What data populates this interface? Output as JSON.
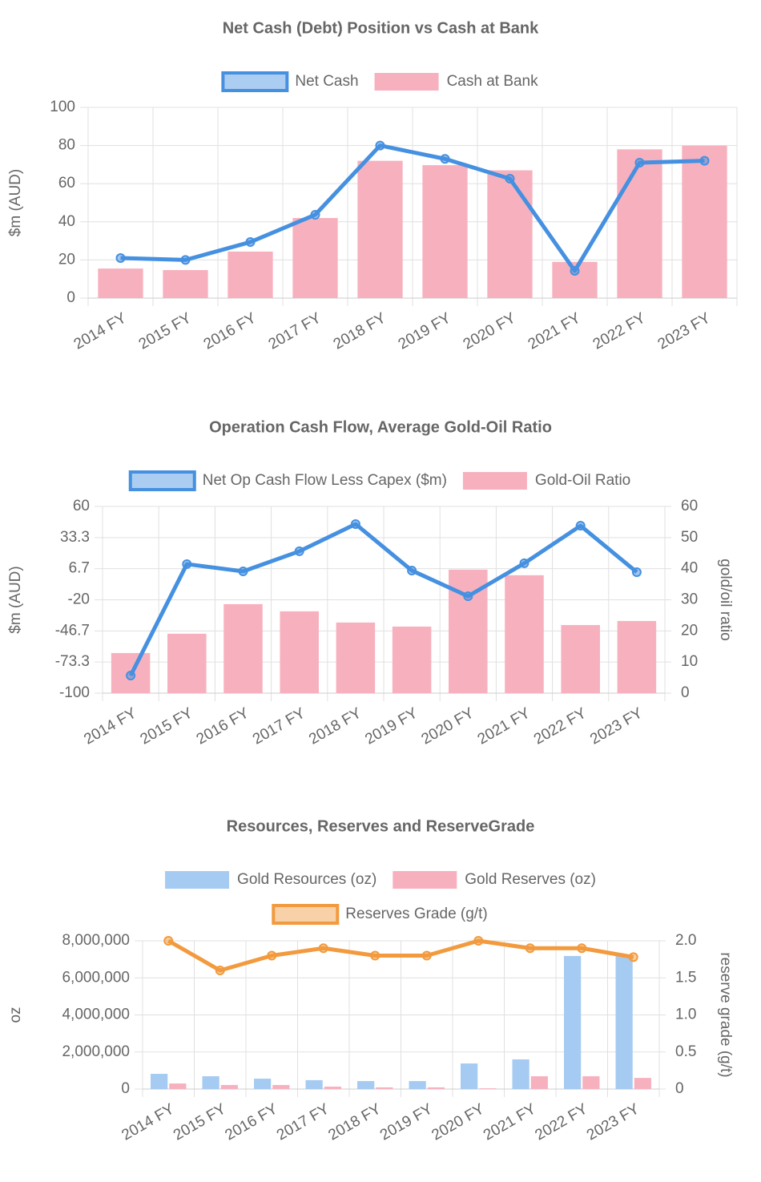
{
  "chart_data": [
    {
      "type": "combo",
      "title": "Net Cash (Debt) Position vs Cash at Bank",
      "ylabel": "$m (AUD)",
      "categories": [
        "2014 FY",
        "2015 FY",
        "2016 FY",
        "2017 FY",
        "2018 FY",
        "2019 FY",
        "2020 FY",
        "2021 FY",
        "2022 FY",
        "2023 FY"
      ],
      "ylim": [
        0,
        100
      ],
      "yticks": [
        0,
        20,
        40,
        60,
        80,
        100
      ],
      "grid": true,
      "series": [
        {
          "name": "Net Cash",
          "type": "line",
          "color": "#4590e0",
          "values": [
            21,
            20,
            29.4,
            43.7,
            80,
            73,
            62.6,
            14.3,
            71,
            72
          ]
        },
        {
          "name": "Cash at Bank",
          "type": "bar",
          "color": "#f7b1be",
          "values": [
            15.5,
            14.7,
            24.4,
            42,
            72,
            69.7,
            67,
            19,
            78,
            80
          ]
        }
      ]
    },
    {
      "type": "combo",
      "title": "Operation Cash Flow, Average Gold-Oil Ratio",
      "ylabel": "$m (AUD)",
      "y2label": "gold/oil ratio",
      "categories": [
        "2014 FY",
        "2015 FY",
        "2016 FY",
        "2017 FY",
        "2018 FY",
        "2019 FY",
        "2020 FY",
        "2021 FY",
        "2022 FY",
        "2023 FY"
      ],
      "ylim": [
        -100,
        60
      ],
      "yticks": [
        -100,
        -73.3,
        -46.7,
        -20,
        6.7,
        33.3,
        60
      ],
      "y2lim": [
        0,
        60
      ],
      "y2ticks": [
        0,
        10,
        20,
        30,
        40,
        50,
        60
      ],
      "grid": true,
      "series": [
        {
          "name": "Net Op Cash Flow Less Capex ($m)",
          "type": "line",
          "color": "#4590e0",
          "values": [
            -84.9,
            10.6,
            4.4,
            21.6,
            44.9,
            5.1,
            -16.9,
            11.3,
            43.5,
            3.7
          ]
        },
        {
          "name": "Gold-Oil Ratio",
          "type": "bar",
          "axis": "y2",
          "color": "#f7b1be",
          "values": [
            12.9,
            19.1,
            28.6,
            26.3,
            22.7,
            21.4,
            39.7,
            37.9,
            21.9,
            23.2
          ]
        }
      ]
    },
    {
      "type": "combo",
      "title": "Resources, Reserves and  ReserveGrade",
      "ylabel": "oz",
      "y2label": "reserve grade (g/t)",
      "categories": [
        "2014 FY",
        "2015 FY",
        "2016 FY",
        "2017 FY",
        "2018 FY",
        "2019 FY",
        "2020 FY",
        "2021 FY",
        "2022 FY",
        "2023 FY"
      ],
      "ylim": [
        0,
        8000000
      ],
      "yticks": [
        0,
        {
          "value": 2000000,
          "label": "2,000,000"
        },
        {
          "value": 4000000,
          "label": "4,000,000"
        },
        {
          "value": 6000000,
          "label": "6,000,000"
        },
        {
          "value": 8000000,
          "label": "8,000,000"
        }
      ],
      "y2lim": [
        0,
        2
      ],
      "y2ticks": [
        0,
        0.5,
        {
          "value": 1,
          "label": "1.0"
        },
        1.5,
        {
          "value": 2,
          "label": "2.0"
        }
      ],
      "grid": true,
      "series": [
        {
          "name": "Gold Resources (oz)",
          "type": "bar",
          "color": "#a5cbf2",
          "values": [
            820000,
            690000,
            560000,
            480000,
            430000,
            430000,
            1380000,
            1600000,
            7180000,
            7180000
          ]
        },
        {
          "name": "Gold Reserves (oz)",
          "type": "bar",
          "color": "#f7b1be",
          "values": [
            300000,
            220000,
            220000,
            130000,
            90000,
            90000,
            40000,
            690000,
            690000,
            600000
          ]
        },
        {
          "name": "Reserves Grade (g/t)",
          "type": "line",
          "axis": "y2",
          "color": "#f29a3d",
          "values": [
            2.0,
            1.6,
            1.8,
            1.9,
            1.8,
            1.8,
            2.0,
            1.9,
            1.9,
            1.78
          ]
        }
      ]
    }
  ]
}
